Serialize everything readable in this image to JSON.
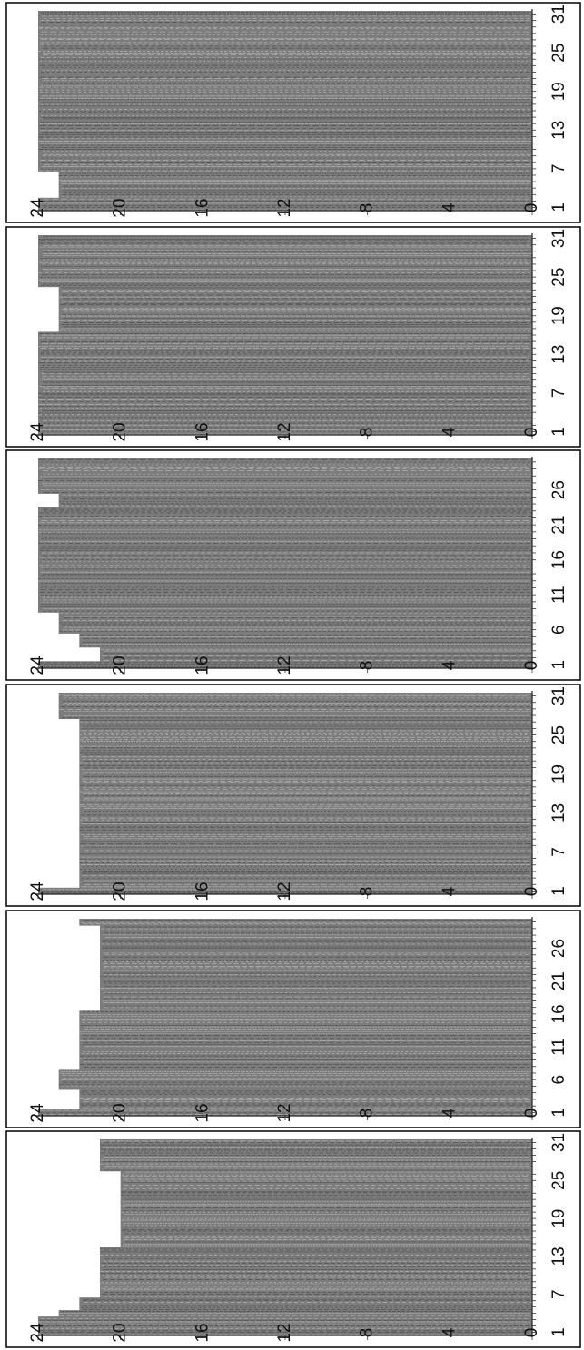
{
  "colors": {
    "bar": "#7c7c7c",
    "bar_dark": "#4e4e4e",
    "bar_light": "#b4b4b4",
    "frame": "#111111"
  },
  "chart_data": [
    {
      "type": "bar",
      "orientation": "rotated-90-ccw",
      "ylim": [
        0,
        24
      ],
      "y_ticks": [
        "0",
        "4",
        "8",
        "12",
        "16",
        "20",
        "24"
      ],
      "x_ticks": [
        "1",
        "7",
        "13",
        "19",
        "25",
        "31"
      ],
      "x_tick_values": [
        1,
        7,
        13,
        19,
        25,
        31
      ],
      "categories": [
        1,
        2,
        3,
        4,
        5,
        6,
        7,
        8,
        9,
        10,
        11,
        12,
        13,
        14,
        15,
        16,
        17,
        18,
        19,
        20,
        21,
        22,
        23,
        24,
        25,
        26,
        27,
        28,
        29,
        30,
        31
      ],
      "values": [
        24,
        24,
        24,
        23,
        22,
        22,
        21,
        21,
        21,
        21,
        21,
        21,
        21,
        21,
        20,
        20,
        20,
        20,
        20,
        20,
        20,
        20,
        20,
        20,
        20,
        20,
        21,
        21,
        21,
        21,
        21
      ]
    },
    {
      "type": "bar",
      "orientation": "rotated-90-ccw",
      "ylim": [
        0,
        24
      ],
      "y_ticks": [
        "0",
        "4",
        "8",
        "12",
        "16",
        "20",
        "24"
      ],
      "x_ticks": [
        "1",
        "6",
        "11",
        "16",
        "21",
        "26"
      ],
      "x_tick_values": [
        1,
        6,
        11,
        16,
        21,
        26
      ],
      "categories": [
        1,
        2,
        3,
        4,
        5,
        6,
        7,
        8,
        9,
        10,
        11,
        12,
        13,
        14,
        15,
        16,
        17,
        18,
        19,
        20,
        21,
        22,
        23,
        24,
        25,
        26,
        27,
        28,
        29,
        30
      ],
      "values": [
        24,
        22,
        22,
        22,
        23,
        23,
        23,
        22,
        22,
        22,
        22,
        22,
        22,
        22,
        22,
        22,
        21,
        21,
        21,
        21,
        21,
        21,
        21,
        21,
        21,
        21,
        21,
        21,
        21,
        22
      ]
    },
    {
      "type": "bar",
      "orientation": "rotated-90-ccw",
      "ylim": [
        0,
        24
      ],
      "y_ticks": [
        "0",
        "4",
        "8",
        "12",
        "16",
        "20",
        "24"
      ],
      "x_ticks": [
        "1",
        "7",
        "13",
        "19",
        "25",
        "31"
      ],
      "x_tick_values": [
        1,
        7,
        13,
        19,
        25,
        31
      ],
      "categories": [
        1,
        2,
        3,
        4,
        5,
        6,
        7,
        8,
        9,
        10,
        11,
        12,
        13,
        14,
        15,
        16,
        17,
        18,
        19,
        20,
        21,
        22,
        23,
        24,
        25,
        26,
        27,
        28,
        29,
        30,
        31
      ],
      "values": [
        24,
        22,
        22,
        22,
        22,
        22,
        22,
        22,
        22,
        22,
        22,
        22,
        22,
        22,
        22,
        22,
        22,
        22,
        22,
        22,
        22,
        22,
        22,
        22,
        22,
        22,
        22,
        23,
        23,
        23,
        23
      ]
    },
    {
      "type": "bar",
      "orientation": "rotated-90-ccw",
      "ylim": [
        0,
        24
      ],
      "y_ticks": [
        "0",
        "4",
        "8",
        "12",
        "16",
        "20",
        "24"
      ],
      "x_ticks": [
        "1",
        "6",
        "11",
        "16",
        "21",
        "26"
      ],
      "x_tick_values": [
        1,
        6,
        11,
        16,
        21,
        26
      ],
      "categories": [
        1,
        2,
        3,
        4,
        5,
        6,
        7,
        8,
        9,
        10,
        11,
        12,
        13,
        14,
        15,
        16,
        17,
        18,
        19,
        20,
        21,
        22,
        23,
        24,
        25,
        26,
        27,
        28,
        29,
        30
      ],
      "values": [
        24,
        21,
        21,
        22,
        22,
        23,
        23,
        23,
        24,
        24,
        24,
        24,
        24,
        24,
        24,
        24,
        24,
        24,
        24,
        24,
        24,
        24,
        24,
        23,
        23,
        24,
        24,
        24,
        24,
        24
      ]
    },
    {
      "type": "bar",
      "orientation": "rotated-90-ccw",
      "ylim": [
        0,
        24
      ],
      "y_ticks": [
        "0",
        "4",
        "8",
        "12",
        "16",
        "20",
        "24"
      ],
      "x_ticks": [
        "1",
        "7",
        "13",
        "19",
        "25",
        "31"
      ],
      "x_tick_values": [
        1,
        7,
        13,
        19,
        25,
        31
      ],
      "categories": [
        1,
        2,
        3,
        4,
        5,
        6,
        7,
        8,
        9,
        10,
        11,
        12,
        13,
        14,
        15,
        16,
        17,
        18,
        19,
        20,
        21,
        22,
        23,
        24,
        25,
        26,
        27,
        28,
        29,
        30,
        31
      ],
      "values": [
        24,
        24,
        24,
        24,
        24,
        24,
        24,
        24,
        24,
        24,
        24,
        24,
        24,
        24,
        24,
        24,
        23,
        23,
        23,
        23,
        23,
        23,
        23,
        24,
        24,
        24,
        24,
        24,
        24,
        24,
        24
      ]
    },
    {
      "type": "bar",
      "orientation": "rotated-90-ccw",
      "ylim": [
        0,
        24
      ],
      "y_ticks": [
        "0",
        "4",
        "8",
        "12",
        "16",
        "20",
        "24"
      ],
      "x_ticks": [
        "1",
        "7",
        "13",
        "19",
        "25",
        "31"
      ],
      "x_tick_values": [
        1,
        7,
        13,
        19,
        25,
        31
      ],
      "categories": [
        1,
        2,
        3,
        4,
        5,
        6,
        7,
        8,
        9,
        10,
        11,
        12,
        13,
        14,
        15,
        16,
        17,
        18,
        19,
        20,
        21,
        22,
        23,
        24,
        25,
        26,
        27,
        28,
        29,
        30,
        31
      ],
      "values": [
        24,
        24,
        23,
        23,
        23,
        23,
        24,
        24,
        24,
        24,
        24,
        24,
        24,
        24,
        24,
        24,
        24,
        24,
        24,
        24,
        24,
        24,
        24,
        24,
        24,
        24,
        24,
        24,
        24,
        24,
        24
      ]
    }
  ]
}
